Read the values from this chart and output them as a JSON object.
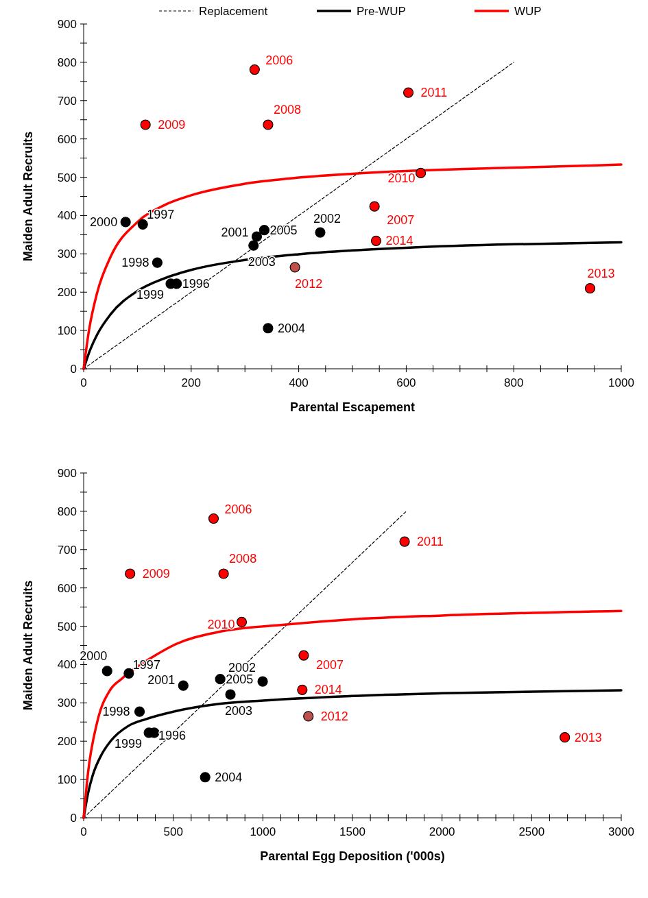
{
  "chart_data": [
    {
      "type": "scatter",
      "xlabel": "Parental Escapement",
      "ylabel": "Maiden Adult Recruits",
      "xlim": [
        0,
        1000
      ],
      "ylim": [
        0,
        900
      ],
      "xticks": [
        0,
        {
          "value": 50,
          "label": null
        },
        {
          "value": 100,
          "label": null
        },
        {
          "value": 150,
          "label": null
        },
        200,
        {
          "value": 250,
          "label": null
        },
        {
          "value": 300,
          "label": null
        },
        {
          "value": 350,
          "label": null
        },
        400,
        {
          "value": 450,
          "label": null
        },
        {
          "value": 500,
          "label": null
        },
        {
          "value": 550,
          "label": null
        },
        600,
        {
          "value": 650,
          "label": null
        },
        {
          "value": 700,
          "label": null
        },
        {
          "value": 750,
          "label": null
        },
        800,
        {
          "value": 850,
          "label": null
        },
        {
          "value": 900,
          "label": null
        },
        {
          "value": 950,
          "label": null
        },
        1000
      ],
      "yticks": [
        0,
        {
          "value": 50,
          "label": null
        },
        100,
        {
          "value": 150,
          "label": null
        },
        200,
        {
          "value": 250,
          "label": null
        },
        300,
        {
          "value": 350,
          "label": null
        },
        400,
        {
          "value": 450,
          "label": null
        },
        500,
        {
          "value": 550,
          "label": null
        },
        600,
        {
          "value": 650,
          "label": null
        },
        700,
        {
          "value": 750,
          "label": null
        },
        800,
        {
          "value": 850,
          "label": null
        },
        900
      ],
      "legend": "top",
      "grid": false,
      "series": [
        {
          "type": "line",
          "name": "Replacement",
          "color": "#000000",
          "line_style": "dashed",
          "x": [
            0,
            800
          ],
          "values": [
            0,
            800
          ]
        },
        {
          "type": "line",
          "name": "Pre-WUP",
          "color": "#000000",
          "line_style": "solid",
          "x": [
            0,
            10,
            25,
            50,
            100,
            150,
            200,
            300,
            400,
            500,
            600,
            800,
            1000
          ],
          "values": [
            0,
            42,
            89,
            142,
            203,
            236,
            258,
            284,
            299,
            309,
            316,
            325,
            330
          ]
        },
        {
          "type": "line",
          "name": "WUP",
          "color": "#ff0000",
          "line_style": "solid",
          "x": [
            0,
            10,
            25,
            50,
            100,
            150,
            200,
            300,
            400,
            500,
            600,
            800,
            1000
          ],
          "values": [
            0,
            101,
            198,
            292,
            383,
            427,
            453,
            483,
            499,
            509,
            516,
            525,
            533
          ]
        },
        {
          "type": "scatter",
          "color": "#000000",
          "marker": "circle",
          "x": [
            173,
            110,
            137,
            162,
            78,
            322,
            440,
            316,
            343,
            336
          ],
          "values": [
            222,
            377,
            277,
            222,
            383,
            345,
            356,
            322,
            106,
            362
          ]
        },
        {
          "type": "scatter",
          "color": "#ff0000",
          "marker": "circle",
          "colors": [
            "#ff0000",
            "#ff0000",
            "#ff0000",
            "#ff0000",
            "#ff0000",
            "#ff0000",
            "#c0504d",
            "#ff0000",
            "#ff0000"
          ],
          "x": [
            318,
            541,
            343,
            115,
            627,
            604,
            393,
            942,
            544
          ],
          "values": [
            781,
            424,
            637,
            637,
            511,
            721,
            265,
            210,
            334
          ]
        }
      ],
      "annotations": [
        {
          "text": "1996",
          "x": 173,
          "y": 222
        },
        {
          "text": "1997",
          "x": 110,
          "y": 377
        },
        {
          "text": "1998",
          "x": 137,
          "y": 277
        },
        {
          "text": "1999",
          "x": 162,
          "y": 222
        },
        {
          "text": "2000",
          "x": 78,
          "y": 383
        },
        {
          "text": "2001",
          "x": 322,
          "y": 345
        },
        {
          "text": "2002",
          "x": 440,
          "y": 356
        },
        {
          "text": "2003",
          "x": 316,
          "y": 322
        },
        {
          "text": "2004",
          "x": 343,
          "y": 106
        },
        {
          "text": "2005",
          "x": 336,
          "y": 362
        },
        {
          "text": "2006",
          "x": 318,
          "y": 781
        },
        {
          "text": "2007",
          "x": 541,
          "y": 424
        },
        {
          "text": "2008",
          "x": 343,
          "y": 637
        },
        {
          "text": "2009",
          "x": 115,
          "y": 637
        },
        {
          "text": "2010",
          "x": 627,
          "y": 511
        },
        {
          "text": "2011",
          "x": 604,
          "y": 721
        },
        {
          "text": "2012",
          "x": 393,
          "y": 265
        },
        {
          "text": "2013",
          "x": 942,
          "y": 210
        },
        {
          "text": "2014",
          "x": 544,
          "y": 334
        }
      ]
    },
    {
      "type": "scatter",
      "xlabel": "Parental Egg Deposition ('000s)",
      "ylabel": "Maiden Adult Recruits",
      "xlim": [
        0,
        3000
      ],
      "ylim": [
        0,
        900
      ],
      "xticks": [
        0,
        {
          "value": 100,
          "label": null
        },
        {
          "value": 200,
          "label": null
        },
        {
          "value": 300,
          "label": null
        },
        {
          "value": 400,
          "label": null
        },
        500,
        {
          "value": 600,
          "label": null
        },
        {
          "value": 700,
          "label": null
        },
        {
          "value": 800,
          "label": null
        },
        {
          "value": 900,
          "label": null
        },
        1000,
        {
          "value": 1100,
          "label": null
        },
        {
          "value": 1200,
          "label": null
        },
        {
          "value": 1300,
          "label": null
        },
        {
          "value": 1400,
          "label": null
        },
        1500,
        {
          "value": 1600,
          "label": null
        },
        {
          "value": 1700,
          "label": null
        },
        {
          "value": 1800,
          "label": null
        },
        {
          "value": 1900,
          "label": null
        },
        2000,
        {
          "value": 2100,
          "label": null
        },
        {
          "value": 2200,
          "label": null
        },
        {
          "value": 2300,
          "label": null
        },
        {
          "value": 2400,
          "label": null
        },
        2500,
        {
          "value": 2600,
          "label": null
        },
        {
          "value": 2700,
          "label": null
        },
        {
          "value": 2800,
          "label": null
        },
        {
          "value": 2900,
          "label": null
        },
        3000
      ],
      "yticks": [
        0,
        {
          "value": 50,
          "label": null
        },
        100,
        {
          "value": 150,
          "label": null
        },
        200,
        {
          "value": 250,
          "label": null
        },
        300,
        {
          "value": 350,
          "label": null
        },
        400,
        {
          "value": 450,
          "label": null
        },
        500,
        {
          "value": 550,
          "label": null
        },
        600,
        {
          "value": 650,
          "label": null
        },
        700,
        {
          "value": 750,
          "label": null
        },
        800,
        {
          "value": 850,
          "label": null
        },
        900
      ],
      "grid": false,
      "series": [
        {
          "type": "line",
          "color": "#000000",
          "line_style": "dashed",
          "x": [
            0,
            1800
          ],
          "values": [
            0,
            800
          ]
        },
        {
          "type": "line",
          "color": "#000000",
          "line_style": "solid",
          "x": [
            0,
            25,
            50,
            100,
            150,
            250,
            350,
            500,
            750,
            1000,
            1500,
            2000,
            3000
          ],
          "values": [
            0,
            65,
            110,
            165,
            200,
            240,
            258,
            277,
            297,
            306,
            318,
            325,
            333
          ]
        },
        {
          "type": "line",
          "color": "#ff0000",
          "line_style": "solid",
          "x": [
            0,
            25,
            75,
            150,
            210,
            400,
            518,
            750,
            1120,
            1500,
            2000,
            3000
          ],
          "values": [
            0,
            120,
            249,
            335,
            362,
            424,
            454,
            485,
            504,
            518,
            528,
            540
          ]
        },
        {
          "type": "scatter",
          "color": "#000000",
          "marker": "circle",
          "x": [
            394,
            252,
            312,
            364,
            131,
            556,
            999,
            819,
            678,
            762
          ],
          "values": [
            222,
            377,
            277,
            222,
            383,
            345,
            356,
            322,
            106,
            362
          ]
        },
        {
          "type": "scatter",
          "color": "#ff0000",
          "marker": "circle",
          "colors": [
            "#ff0000",
            "#ff0000",
            "#ff0000",
            "#ff0000",
            "#ff0000",
            "#ff0000",
            "#c0504d",
            "#ff0000",
            "#ff0000"
          ],
          "x": [
            725,
            1228,
            781,
            259,
            882,
            1791,
            1254,
            2685,
            1220
          ],
          "values": [
            781,
            424,
            637,
            637,
            511,
            721,
            265,
            210,
            334
          ]
        }
      ],
      "annotations": [
        {
          "text": "1996",
          "x": 394,
          "y": 222
        },
        {
          "text": "1997",
          "x": 252,
          "y": 377
        },
        {
          "text": "1998",
          "x": 312,
          "y": 277
        },
        {
          "text": "1999",
          "x": 364,
          "y": 222
        },
        {
          "text": "2000",
          "x": 131,
          "y": 383
        },
        {
          "text": "2001",
          "x": 556,
          "y": 345
        },
        {
          "text": "2002",
          "x": 999,
          "y": 356
        },
        {
          "text": "2003",
          "x": 819,
          "y": 322
        },
        {
          "text": "2004",
          "x": 678,
          "y": 106
        },
        {
          "text": "2005",
          "x": 762,
          "y": 362
        },
        {
          "text": "2006",
          "x": 725,
          "y": 781
        },
        {
          "text": "2007",
          "x": 1228,
          "y": 424
        },
        {
          "text": "2008",
          "x": 781,
          "y": 637
        },
        {
          "text": "2009",
          "x": 259,
          "y": 637
        },
        {
          "text": "2010",
          "x": 882,
          "y": 511
        },
        {
          "text": "2011",
          "x": 1791,
          "y": 721
        },
        {
          "text": "2012",
          "x": 1254,
          "y": 265
        },
        {
          "text": "2013",
          "x": 2685,
          "y": 210
        },
        {
          "text": "2014",
          "x": 1220,
          "y": 334
        }
      ]
    }
  ]
}
